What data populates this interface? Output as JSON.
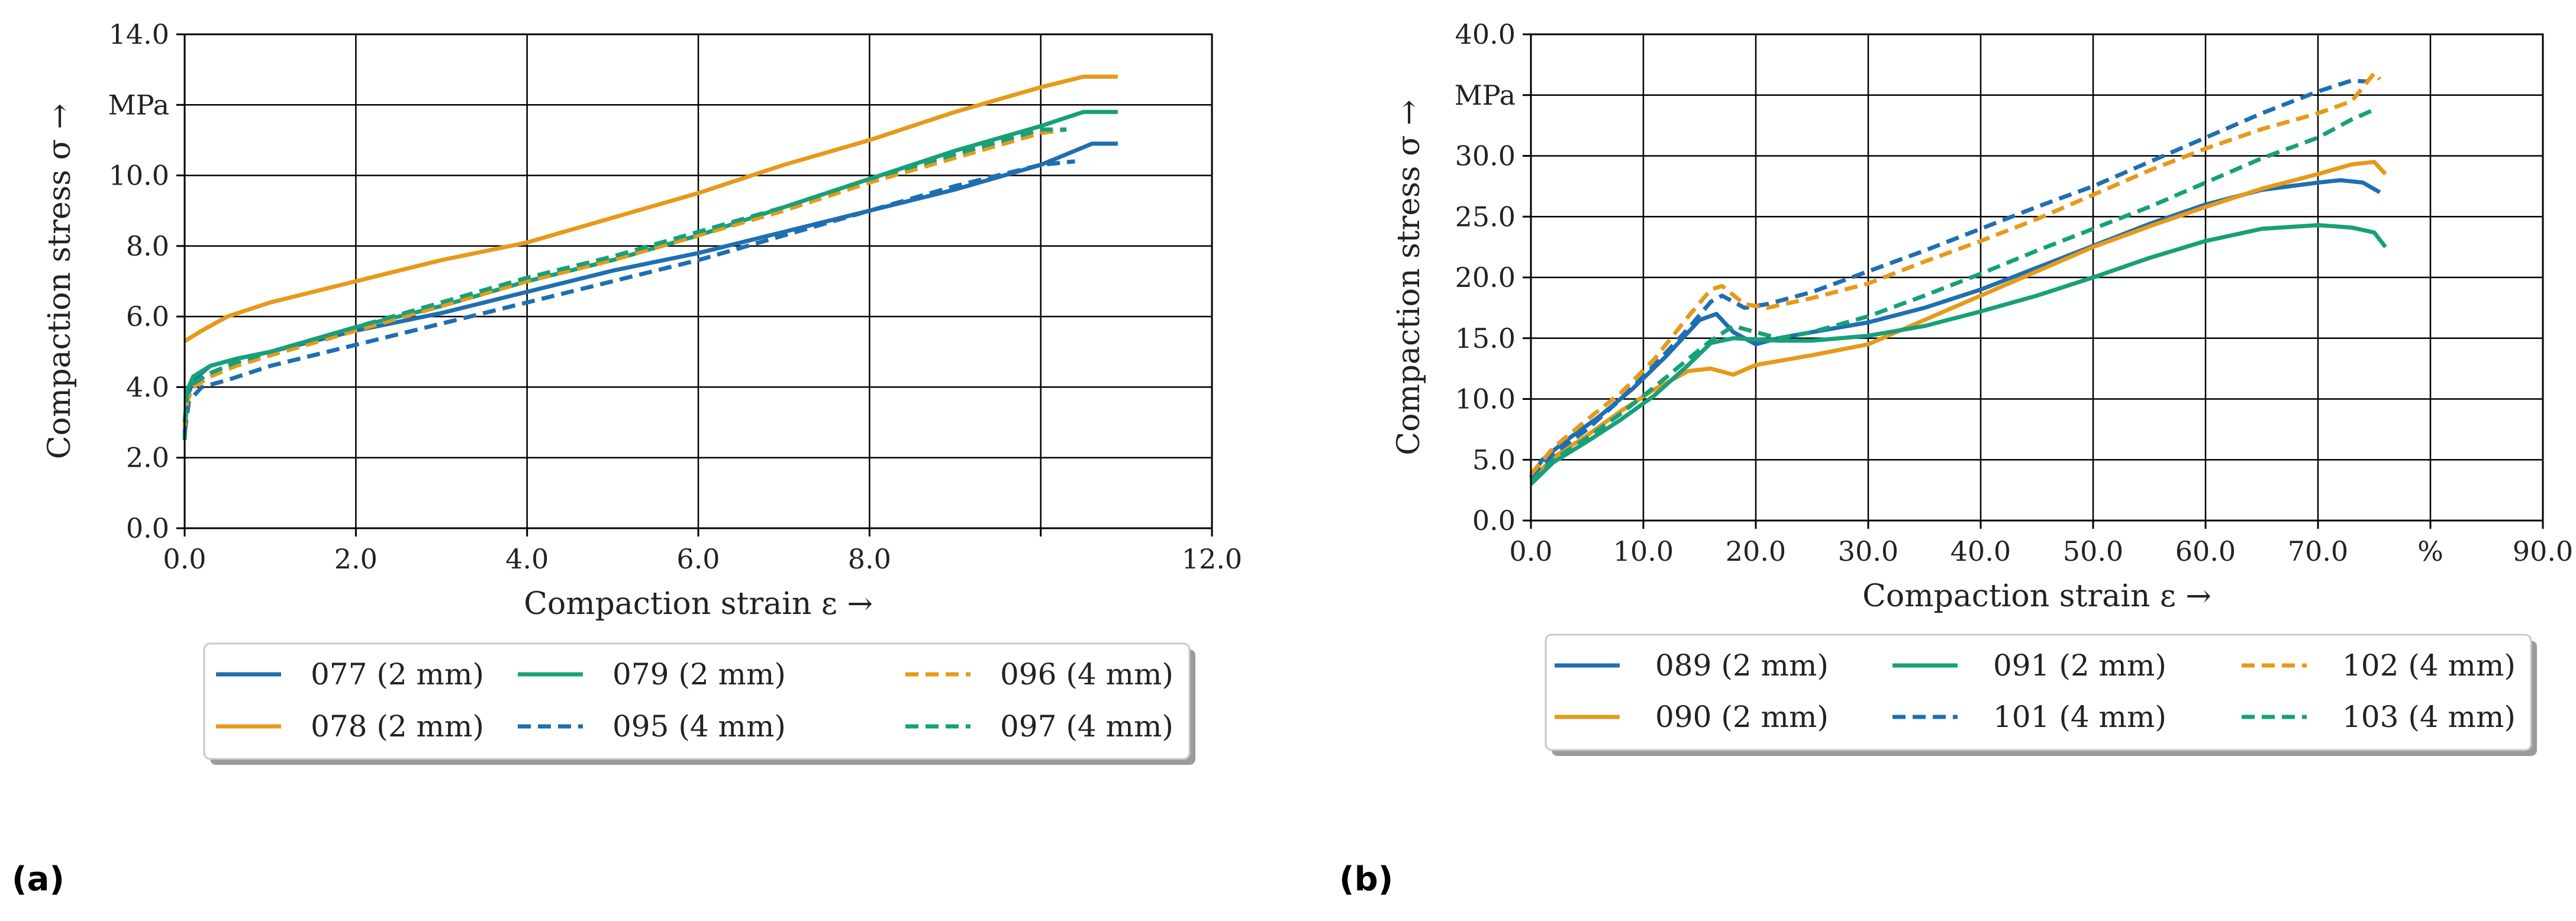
{
  "chart_data": [
    {
      "type": "line",
      "panel_label": "(a)",
      "xlabel": "Compaction strain ε →",
      "ylabel": "Compaction stress σ →",
      "y_unit": "MPa",
      "xlim": [
        0,
        12
      ],
      "ylim": [
        0,
        14
      ],
      "x_ticks": [
        0,
        2,
        4,
        6,
        8,
        10,
        12
      ],
      "x_tick_labels": [
        "0.0",
        "2.0",
        "4.0",
        "6.0",
        "8.0",
        "",
        "12.0"
      ],
      "y_ticks": [
        0,
        2,
        4,
        6,
        8,
        10,
        12,
        14
      ],
      "y_tick_labels": [
        "0.0",
        "2.0",
        "4.0",
        "6.0",
        "8.0",
        "10.0",
        "MPa",
        "14.0"
      ],
      "grid": true,
      "legend_position": "below",
      "series": [
        {
          "name": "077 (2 mm)",
          "color": "#1f6fb0",
          "dash": "solid",
          "points": [
            [
              0,
              2.6
            ],
            [
              0.03,
              3.7
            ],
            [
              0.1,
              4.2
            ],
            [
              0.3,
              4.6
            ],
            [
              0.6,
              4.8
            ],
            [
              1,
              5.0
            ],
            [
              2,
              5.6
            ],
            [
              3,
              6.1
            ],
            [
              4,
              6.7
            ],
            [
              5,
              7.3
            ],
            [
              6,
              7.8
            ],
            [
              7,
              8.4
            ],
            [
              8,
              9.0
            ],
            [
              9,
              9.6
            ],
            [
              10,
              10.3
            ],
            [
              10.6,
              10.9
            ],
            [
              10.9,
              10.9
            ]
          ]
        },
        {
          "name": "078 (2 mm)",
          "color": "#e69a1a",
          "dash": "solid",
          "points": [
            [
              0,
              5.3
            ],
            [
              0.2,
              5.6
            ],
            [
              0.5,
              6.0
            ],
            [
              1,
              6.4
            ],
            [
              2,
              7.0
            ],
            [
              3,
              7.6
            ],
            [
              4,
              8.1
            ],
            [
              5,
              8.8
            ],
            [
              6,
              9.5
            ],
            [
              7,
              10.3
            ],
            [
              8,
              11.0
            ],
            [
              9,
              11.8
            ],
            [
              10,
              12.5
            ],
            [
              10.5,
              12.8
            ],
            [
              10.9,
              12.8
            ]
          ]
        },
        {
          "name": "079 (2 mm)",
          "color": "#17a07a",
          "dash": "solid",
          "points": [
            [
              0,
              2.5
            ],
            [
              0.03,
              3.9
            ],
            [
              0.1,
              4.3
            ],
            [
              0.3,
              4.6
            ],
            [
              0.6,
              4.8
            ],
            [
              1,
              5.0
            ],
            [
              2,
              5.7
            ],
            [
              3,
              6.3
            ],
            [
              4,
              7.0
            ],
            [
              5,
              7.6
            ],
            [
              6,
              8.3
            ],
            [
              7,
              9.1
            ],
            [
              8,
              9.9
            ],
            [
              9,
              10.7
            ],
            [
              10,
              11.4
            ],
            [
              10.5,
              11.8
            ],
            [
              10.9,
              11.8
            ]
          ]
        },
        {
          "name": "095 (4 mm)",
          "color": "#1f6fb0",
          "dash": "dashed",
          "points": [
            [
              0,
              2.7
            ],
            [
              0.05,
              3.6
            ],
            [
              0.2,
              4.0
            ],
            [
              0.5,
              4.2
            ],
            [
              1,
              4.6
            ],
            [
              2,
              5.2
            ],
            [
              3,
              5.8
            ],
            [
              4,
              6.4
            ],
            [
              5,
              7.0
            ],
            [
              6,
              7.6
            ],
            [
              7,
              8.3
            ],
            [
              8,
              9.0
            ],
            [
              9,
              9.7
            ],
            [
              10,
              10.3
            ],
            [
              10.4,
              10.4
            ]
          ]
        },
        {
          "name": "096 (4 mm)",
          "color": "#e69a1a",
          "dash": "dashed",
          "points": [
            [
              0,
              2.9
            ],
            [
              0.03,
              3.6
            ],
            [
              0.1,
              4.0
            ],
            [
              0.3,
              4.3
            ],
            [
              0.6,
              4.6
            ],
            [
              1,
              4.9
            ],
            [
              2,
              5.6
            ],
            [
              3,
              6.3
            ],
            [
              4,
              7.0
            ],
            [
              5,
              7.6
            ],
            [
              6,
              8.3
            ],
            [
              7,
              9.0
            ],
            [
              8,
              9.8
            ],
            [
              9,
              10.5
            ],
            [
              10,
              11.2
            ],
            [
              10.3,
              11.3
            ]
          ]
        },
        {
          "name": "097 (4 mm)",
          "color": "#17a07a",
          "dash": "dashed",
          "points": [
            [
              0,
              3.0
            ],
            [
              0.03,
              3.8
            ],
            [
              0.1,
              4.1
            ],
            [
              0.3,
              4.4
            ],
            [
              0.6,
              4.7
            ],
            [
              1,
              5.0
            ],
            [
              2,
              5.7
            ],
            [
              3,
              6.4
            ],
            [
              4,
              7.1
            ],
            [
              5,
              7.7
            ],
            [
              6,
              8.4
            ],
            [
              7,
              9.1
            ],
            [
              8,
              9.9
            ],
            [
              9,
              10.6
            ],
            [
              10,
              11.3
            ],
            [
              10.3,
              11.3
            ]
          ]
        }
      ]
    },
    {
      "type": "line",
      "panel_label": "(b)",
      "xlabel": "Compaction strain ε →",
      "ylabel": "Compaction stress σ →",
      "y_unit": "MPa",
      "xlim": [
        0,
        90
      ],
      "ylim": [
        0,
        40
      ],
      "x_ticks": [
        0,
        10,
        20,
        30,
        40,
        50,
        60,
        70,
        80,
        90
      ],
      "x_tick_labels": [
        "0.0",
        "10.0",
        "20.0",
        "30.0",
        "40.0",
        "50.0",
        "60.0",
        "70.0",
        "%",
        "90.0"
      ],
      "y_ticks": [
        0,
        5,
        10,
        15,
        20,
        25,
        30,
        35,
        40
      ],
      "y_tick_labels": [
        "0.0",
        "5.0",
        "10.0",
        "15.0",
        "20.0",
        "25.0",
        "30.0",
        "MPa",
        "40.0"
      ],
      "grid": true,
      "legend_position": "below",
      "series": [
        {
          "name": "089 (2 mm)",
          "color": "#1f6fb0",
          "dash": "solid",
          "points": [
            [
              0,
              3.5
            ],
            [
              1,
              5.0
            ],
            [
              3,
              6.5
            ],
            [
              6,
              8.5
            ],
            [
              9,
              10.8
            ],
            [
              12,
              13.5
            ],
            [
              15,
              16.5
            ],
            [
              16.5,
              17.0
            ],
            [
              18,
              15.5
            ],
            [
              20,
              14.5
            ],
            [
              22,
              15.0
            ],
            [
              25,
              15.5
            ],
            [
              30,
              16.3
            ],
            [
              35,
              17.5
            ],
            [
              40,
              19.0
            ],
            [
              45,
              20.8
            ],
            [
              50,
              22.6
            ],
            [
              55,
              24.4
            ],
            [
              60,
              26.0
            ],
            [
              65,
              27.2
            ],
            [
              70,
              27.8
            ],
            [
              72,
              28.0
            ],
            [
              74,
              27.8
            ],
            [
              75.5,
              27.0
            ]
          ]
        },
        {
          "name": "090 (2 mm)",
          "color": "#e69a1a",
          "dash": "solid",
          "points": [
            [
              0,
              3.3
            ],
            [
              2,
              5.2
            ],
            [
              5,
              7.0
            ],
            [
              8,
              9.0
            ],
            [
              11,
              10.8
            ],
            [
              14,
              12.3
            ],
            [
              16,
              12.5
            ],
            [
              18,
              12.0
            ],
            [
              20,
              12.8
            ],
            [
              25,
              13.6
            ],
            [
              30,
              14.5
            ],
            [
              35,
              16.5
            ],
            [
              40,
              18.5
            ],
            [
              45,
              20.5
            ],
            [
              50,
              22.5
            ],
            [
              55,
              24.2
            ],
            [
              60,
              25.8
            ],
            [
              65,
              27.3
            ],
            [
              70,
              28.5
            ],
            [
              73,
              29.3
            ],
            [
              75,
              29.5
            ],
            [
              76,
              28.5
            ]
          ]
        },
        {
          "name": "091 (2 mm)",
          "color": "#17a07a",
          "dash": "solid",
          "points": [
            [
              0,
              3.0
            ],
            [
              2,
              4.8
            ],
            [
              5,
              6.5
            ],
            [
              8,
              8.3
            ],
            [
              11,
              10.3
            ],
            [
              14,
              12.8
            ],
            [
              16,
              14.6
            ],
            [
              18,
              15.0
            ],
            [
              20,
              14.9
            ],
            [
              22,
              14.8
            ],
            [
              25,
              14.8
            ],
            [
              30,
              15.2
            ],
            [
              35,
              16.0
            ],
            [
              40,
              17.2
            ],
            [
              45,
              18.5
            ],
            [
              50,
              20.0
            ],
            [
              55,
              21.6
            ],
            [
              60,
              23.0
            ],
            [
              65,
              24.0
            ],
            [
              70,
              24.3
            ],
            [
              73,
              24.1
            ],
            [
              75,
              23.7
            ],
            [
              76,
              22.5
            ]
          ]
        },
        {
          "name": "101 (4 mm)",
          "color": "#1f6fb0",
          "dash": "dashed",
          "points": [
            [
              0,
              3.6
            ],
            [
              2,
              5.5
            ],
            [
              5,
              7.5
            ],
            [
              8,
              10.0
            ],
            [
              11,
              12.8
            ],
            [
              14,
              15.8
            ],
            [
              16,
              18.0
            ],
            [
              17,
              18.5
            ],
            [
              19,
              17.5
            ],
            [
              21,
              17.8
            ],
            [
              25,
              18.8
            ],
            [
              30,
              20.5
            ],
            [
              35,
              22.2
            ],
            [
              40,
              24.0
            ],
            [
              45,
              25.8
            ],
            [
              50,
              27.5
            ],
            [
              55,
              29.5
            ],
            [
              60,
              31.5
            ],
            [
              65,
              33.5
            ],
            [
              70,
              35.3
            ],
            [
              73,
              36.2
            ],
            [
              74.5,
              36.1
            ]
          ]
        },
        {
          "name": "102 (4 mm)",
          "color": "#e69a1a",
          "dash": "dashed",
          "points": [
            [
              0,
              3.8
            ],
            [
              2,
              6.0
            ],
            [
              5,
              8.3
            ],
            [
              8,
              10.5
            ],
            [
              11,
              13.3
            ],
            [
              14,
              16.8
            ],
            [
              16,
              19.0
            ],
            [
              17,
              19.3
            ],
            [
              19,
              17.8
            ],
            [
              21,
              17.5
            ],
            [
              25,
              18.3
            ],
            [
              30,
              19.5
            ],
            [
              35,
              21.3
            ],
            [
              40,
              23.0
            ],
            [
              45,
              24.8
            ],
            [
              50,
              26.8
            ],
            [
              55,
              28.8
            ],
            [
              60,
              30.6
            ],
            [
              65,
              32.2
            ],
            [
              70,
              33.5
            ],
            [
              73,
              34.5
            ],
            [
              75,
              36.8
            ],
            [
              75.5,
              36.3
            ]
          ]
        },
        {
          "name": "103 (4 mm)",
          "color": "#17a07a",
          "dash": "dashed",
          "points": [
            [
              0,
              3.2
            ],
            [
              2,
              5.0
            ],
            [
              5,
              6.8
            ],
            [
              8,
              8.8
            ],
            [
              11,
              11.0
            ],
            [
              14,
              13.3
            ],
            [
              16,
              14.8
            ],
            [
              18,
              16.0
            ],
            [
              20,
              15.5
            ],
            [
              22,
              15.0
            ],
            [
              25,
              15.5
            ],
            [
              30,
              16.8
            ],
            [
              35,
              18.5
            ],
            [
              40,
              20.3
            ],
            [
              45,
              22.2
            ],
            [
              50,
              24.0
            ],
            [
              55,
              25.8
            ],
            [
              60,
              27.8
            ],
            [
              65,
              29.8
            ],
            [
              70,
              31.5
            ],
            [
              73,
              33.0
            ],
            [
              75,
              33.8
            ]
          ]
        }
      ]
    }
  ]
}
